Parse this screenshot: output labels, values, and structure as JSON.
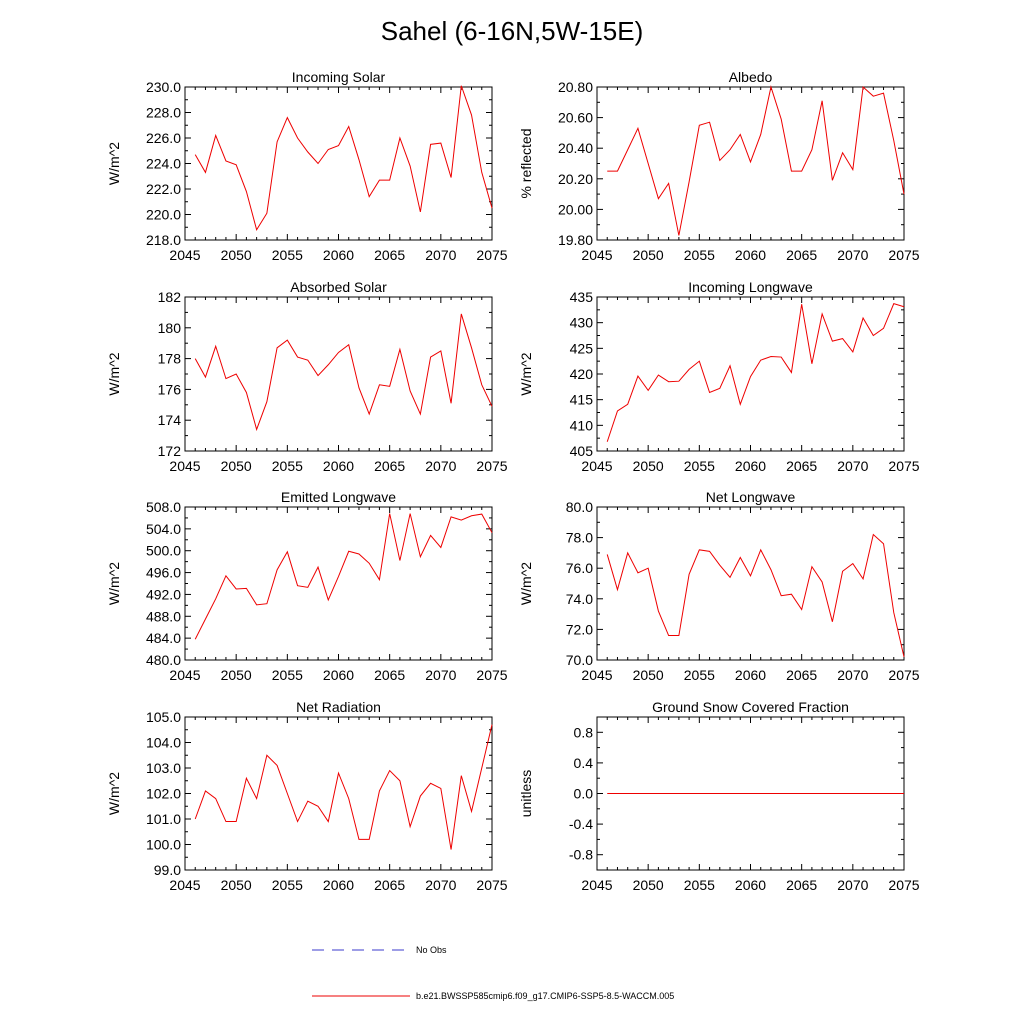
{
  "title": "Sahel (6-16N,5W-15E)",
  "colors": {
    "series": "#ee0000",
    "obs": "#3b3bcc",
    "axis": "#000000"
  },
  "legend": {
    "obs_label": "No Obs",
    "model_label": "b.e21.BWSSP585cmip6.f09_g17.CMIP6-SSP5-8.5-WACCM.005"
  },
  "chart_data": [
    {
      "type": "line",
      "title": "Incoming Solar",
      "ylabel": "W/m^2",
      "xlim": [
        2045,
        2075
      ],
      "xticks": [
        2045,
        2050,
        2055,
        2060,
        2065,
        2070,
        2075
      ],
      "ylim": [
        218,
        230
      ],
      "yticks": [
        218,
        220,
        222,
        224,
        226,
        228,
        230
      ],
      "ydecimals": 1,
      "x": [
        2046,
        2047,
        2048,
        2049,
        2050,
        2051,
        2052,
        2053,
        2054,
        2055,
        2056,
        2057,
        2058,
        2059,
        2060,
        2061,
        2062,
        2063,
        2064,
        2065,
        2066,
        2067,
        2068,
        2069,
        2070,
        2071,
        2072,
        2073,
        2074,
        2075
      ],
      "values": [
        224.7,
        223.3,
        226.2,
        224.2,
        223.9,
        221.8,
        218.8,
        220.1,
        225.7,
        227.6,
        226.0,
        224.9,
        224.0,
        225.1,
        225.4,
        226.9,
        224.3,
        221.4,
        222.7,
        222.7,
        226.0,
        223.8,
        220.2,
        225.5,
        225.6,
        222.9,
        230.1,
        227.8,
        223.3,
        220.5
      ]
    },
    {
      "type": "line",
      "title": "Albedo",
      "ylabel": "% reflected",
      "xlim": [
        2045,
        2075
      ],
      "xticks": [
        2045,
        2050,
        2055,
        2060,
        2065,
        2070,
        2075
      ],
      "ylim": [
        19.8,
        20.8
      ],
      "yticks": [
        19.8,
        20.0,
        20.2,
        20.4,
        20.6,
        20.8
      ],
      "ydecimals": 2,
      "x": [
        2046,
        2047,
        2048,
        2049,
        2050,
        2051,
        2052,
        2053,
        2054,
        2055,
        2056,
        2057,
        2058,
        2059,
        2060,
        2061,
        2062,
        2063,
        2064,
        2065,
        2066,
        2067,
        2068,
        2069,
        2070,
        2071,
        2072,
        2073,
        2074,
        2075
      ],
      "values": [
        20.25,
        20.25,
        20.39,
        20.53,
        20.3,
        20.07,
        20.17,
        19.83,
        20.18,
        20.55,
        20.57,
        20.32,
        20.39,
        20.49,
        20.31,
        20.49,
        20.8,
        20.59,
        20.25,
        20.25,
        20.39,
        20.71,
        20.19,
        20.37,
        20.26,
        20.8,
        20.74,
        20.76,
        20.45,
        20.1
      ]
    },
    {
      "type": "line",
      "title": "Absorbed Solar",
      "ylabel": "W/m^2",
      "xlim": [
        2045,
        2075
      ],
      "xticks": [
        2045,
        2050,
        2055,
        2060,
        2065,
        2070,
        2075
      ],
      "ylim": [
        172,
        182
      ],
      "yticks": [
        172,
        174,
        176,
        178,
        180,
        182
      ],
      "ydecimals": 0,
      "x": [
        2046,
        2047,
        2048,
        2049,
        2050,
        2051,
        2052,
        2053,
        2054,
        2055,
        2056,
        2057,
        2058,
        2059,
        2060,
        2061,
        2062,
        2063,
        2064,
        2065,
        2066,
        2067,
        2068,
        2069,
        2070,
        2071,
        2072,
        2073,
        2074,
        2075
      ],
      "values": [
        178.0,
        176.8,
        178.8,
        176.7,
        177.0,
        175.8,
        173.4,
        175.2,
        178.7,
        179.2,
        178.1,
        177.9,
        176.9,
        177.6,
        178.4,
        178.9,
        176.1,
        174.4,
        176.3,
        176.2,
        178.6,
        175.9,
        174.4,
        178.1,
        178.5,
        175.1,
        180.9,
        178.7,
        176.3,
        174.9
      ]
    },
    {
      "type": "line",
      "title": "Incoming Longwave",
      "ylabel": "W/m^2",
      "xlim": [
        2045,
        2075
      ],
      "xticks": [
        2045,
        2050,
        2055,
        2060,
        2065,
        2070,
        2075
      ],
      "ylim": [
        405,
        435
      ],
      "yticks": [
        405,
        410,
        415,
        420,
        425,
        430,
        435
      ],
      "ydecimals": 0,
      "x": [
        2046,
        2047,
        2048,
        2049,
        2050,
        2051,
        2052,
        2053,
        2054,
        2055,
        2056,
        2057,
        2058,
        2059,
        2060,
        2061,
        2062,
        2063,
        2064,
        2065,
        2066,
        2067,
        2068,
        2069,
        2070,
        2071,
        2072,
        2073,
        2074,
        2075
      ],
      "values": [
        406.8,
        412.8,
        414.1,
        419.6,
        416.8,
        419.8,
        418.5,
        418.6,
        420.9,
        422.5,
        416.4,
        417.2,
        421.6,
        414.1,
        419.5,
        422.7,
        423.4,
        423.3,
        420.3,
        433.6,
        422.0,
        431.7,
        426.4,
        426.9,
        424.3,
        430.9,
        427.5,
        428.9,
        433.7,
        433.1
      ]
    },
    {
      "type": "line",
      "title": "Emitted Longwave",
      "ylabel": "W/m^2",
      "xlim": [
        2045,
        2075
      ],
      "xticks": [
        2045,
        2050,
        2055,
        2060,
        2065,
        2070,
        2075
      ],
      "ylim": [
        480,
        508
      ],
      "yticks": [
        480,
        484,
        488,
        492,
        496,
        500,
        504,
        508
      ],
      "ydecimals": 1,
      "x": [
        2046,
        2047,
        2048,
        2049,
        2050,
        2051,
        2052,
        2053,
        2054,
        2055,
        2056,
        2057,
        2058,
        2059,
        2060,
        2061,
        2062,
        2063,
        2064,
        2065,
        2066,
        2067,
        2068,
        2069,
        2070,
        2071,
        2072,
        2073,
        2074,
        2075
      ],
      "values": [
        483.8,
        487.5,
        491.2,
        495.4,
        493.0,
        493.1,
        490.1,
        490.3,
        496.5,
        499.8,
        493.6,
        493.3,
        497.0,
        491.0,
        495.3,
        499.9,
        499.4,
        497.7,
        494.7,
        506.8,
        498.2,
        506.8,
        498.9,
        502.8,
        500.6,
        506.2,
        505.6,
        506.4,
        506.7,
        503.3
      ]
    },
    {
      "type": "line",
      "title": "Net Longwave",
      "ylabel": "W/m^2",
      "xlim": [
        2045,
        2075
      ],
      "xticks": [
        2045,
        2050,
        2055,
        2060,
        2065,
        2070,
        2075
      ],
      "ylim": [
        70,
        80
      ],
      "yticks": [
        70,
        72,
        74,
        76,
        78,
        80
      ],
      "ydecimals": 1,
      "x": [
        2046,
        2047,
        2048,
        2049,
        2050,
        2051,
        2052,
        2053,
        2054,
        2055,
        2056,
        2057,
        2058,
        2059,
        2060,
        2061,
        2062,
        2063,
        2064,
        2065,
        2066,
        2067,
        2068,
        2069,
        2070,
        2071,
        2072,
        2073,
        2074,
        2075
      ],
      "values": [
        76.9,
        74.6,
        77.0,
        75.7,
        76.0,
        73.2,
        71.6,
        71.6,
        75.6,
        77.2,
        77.1,
        76.2,
        75.4,
        76.7,
        75.5,
        77.2,
        75.9,
        74.2,
        74.3,
        73.3,
        76.1,
        75.1,
        72.5,
        75.8,
        76.3,
        75.3,
        78.2,
        77.6,
        73.1,
        70.2
      ]
    },
    {
      "type": "line",
      "title": "Net Radiation",
      "ylabel": "W/m^2",
      "xlim": [
        2045,
        2075
      ],
      "xticks": [
        2045,
        2050,
        2055,
        2060,
        2065,
        2070,
        2075
      ],
      "ylim": [
        99,
        105
      ],
      "yticks": [
        99,
        100,
        101,
        102,
        103,
        104,
        105
      ],
      "ydecimals": 1,
      "x": [
        2046,
        2047,
        2048,
        2049,
        2050,
        2051,
        2052,
        2053,
        2054,
        2055,
        2056,
        2057,
        2058,
        2059,
        2060,
        2061,
        2062,
        2063,
        2064,
        2065,
        2066,
        2067,
        2068,
        2069,
        2070,
        2071,
        2072,
        2073,
        2074,
        2075
      ],
      "values": [
        101.0,
        102.1,
        101.8,
        100.9,
        100.9,
        102.6,
        101.8,
        103.5,
        103.1,
        102.0,
        100.9,
        101.7,
        101.5,
        100.9,
        102.8,
        101.8,
        100.2,
        100.2,
        102.1,
        102.9,
        102.5,
        100.7,
        101.9,
        102.4,
        102.2,
        99.8,
        102.7,
        101.3,
        103.0,
        104.7
      ]
    },
    {
      "type": "line",
      "title": "Ground Snow Covered Fraction",
      "ylabel": "unitless",
      "xlim": [
        2045,
        2075
      ],
      "xticks": [
        2045,
        2050,
        2055,
        2060,
        2065,
        2070,
        2075
      ],
      "ylim": [
        -1.0,
        1.0
      ],
      "yticks": [
        -0.8,
        -0.4,
        0.0,
        0.4,
        0.8
      ],
      "ydecimals": 1,
      "x": [
        2046,
        2075
      ],
      "values": [
        0.0,
        0.0
      ]
    }
  ]
}
